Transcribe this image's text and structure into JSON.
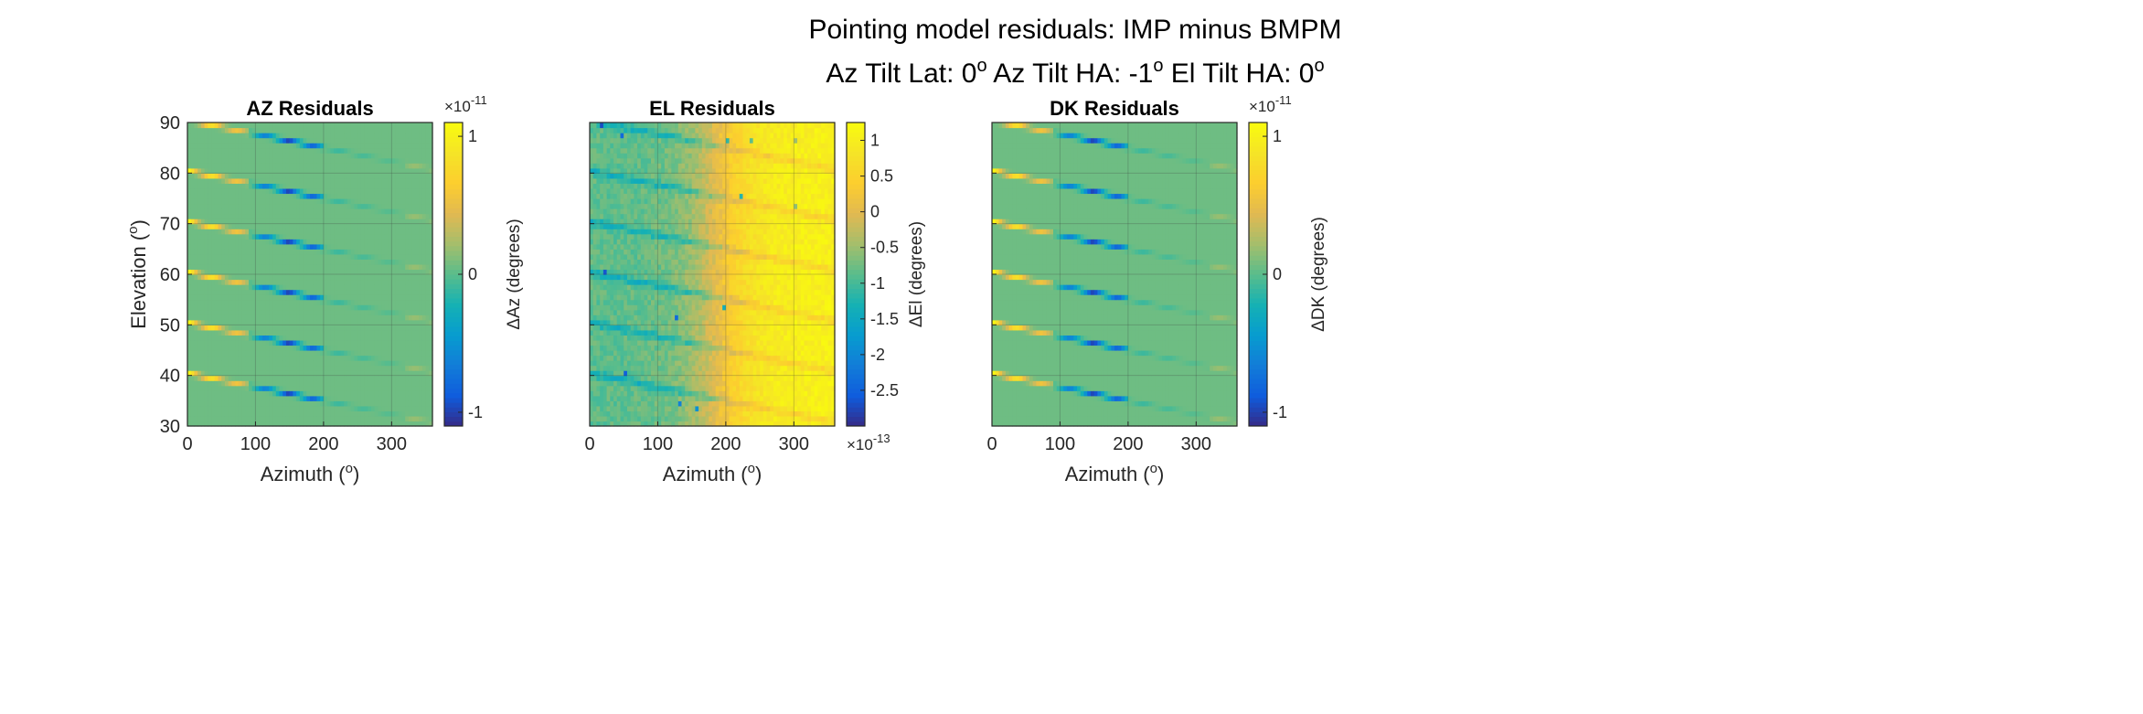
{
  "figure": {
    "title": "Pointing model residuals: IMP minus BMPM",
    "subtitle_parts": [
      "Az Tilt Lat: 0",
      "o",
      " Az Tilt HA: -1",
      "o",
      " El Tilt HA: 0",
      "o"
    ]
  },
  "chart_data": [
    {
      "type": "heatmap",
      "title": "AZ Residuals",
      "xlabel": "Azimuth (",
      "xlabel_sup": "o",
      "xlabel_end": ")",
      "ylabel": "Elevation (",
      "ylabel_sup": "o",
      "ylabel_end": ")",
      "xlim": [
        0,
        360
      ],
      "ylim": [
        30,
        90
      ],
      "xticks": [
        0,
        100,
        200,
        300
      ],
      "yticks": [
        30,
        40,
        50,
        60,
        70,
        80,
        90
      ],
      "show_ytick_labels": true,
      "grid": true,
      "colormap": "parula",
      "pattern": "residual",
      "colorbar": {
        "label": "ΔAz (degrees)",
        "clim": [
          -1.1,
          1.1
        ],
        "ticks": [
          -1,
          0,
          1
        ],
        "tick_labels": [
          "-1",
          "0",
          "1"
        ],
        "exponent_base": "×10",
        "exponent": "-11",
        "exponent_position": "top"
      }
    },
    {
      "type": "heatmap",
      "title": "EL Residuals",
      "xlabel": "Azimuth (",
      "xlabel_sup": "o",
      "xlabel_end": ")",
      "ylabel": "",
      "xlim": [
        0,
        360
      ],
      "ylim": [
        30,
        90
      ],
      "xticks": [
        0,
        100,
        200,
        300
      ],
      "yticks": [
        30,
        40,
        50,
        60,
        70,
        80,
        90
      ],
      "show_ytick_labels": false,
      "grid": true,
      "colormap": "parula",
      "pattern": "el",
      "colorbar": {
        "label": "ΔEl (degrees)",
        "clim": [
          -3.0,
          1.25
        ],
        "ticks": [
          -2.5,
          -2,
          -1.5,
          -1,
          -0.5,
          0,
          0.5,
          1
        ],
        "tick_labels": [
          "-2.5",
          "-2",
          "-1.5",
          "-1",
          "-0.5",
          "0",
          "0.5",
          "1"
        ],
        "exponent_base": "×10",
        "exponent": "-13",
        "exponent_position": "bottom"
      }
    },
    {
      "type": "heatmap",
      "title": "DK Residuals",
      "xlabel": "Azimuth (",
      "xlabel_sup": "o",
      "xlabel_end": ")",
      "ylabel": "",
      "xlim": [
        0,
        360
      ],
      "ylim": [
        30,
        90
      ],
      "xticks": [
        0,
        100,
        200,
        300
      ],
      "yticks": [
        30,
        40,
        50,
        60,
        70,
        80,
        90
      ],
      "show_ytick_labels": false,
      "grid": true,
      "colormap": "parula",
      "pattern": "residual",
      "colorbar": {
        "label": "ΔDK (degrees)",
        "clim": [
          -1.1,
          1.1
        ],
        "ticks": [
          -1,
          0,
          1
        ],
        "tick_labels": [
          "-1",
          "0",
          "1"
        ],
        "exponent_base": "×10",
        "exponent": "-11",
        "exponent_position": "top"
      }
    }
  ]
}
